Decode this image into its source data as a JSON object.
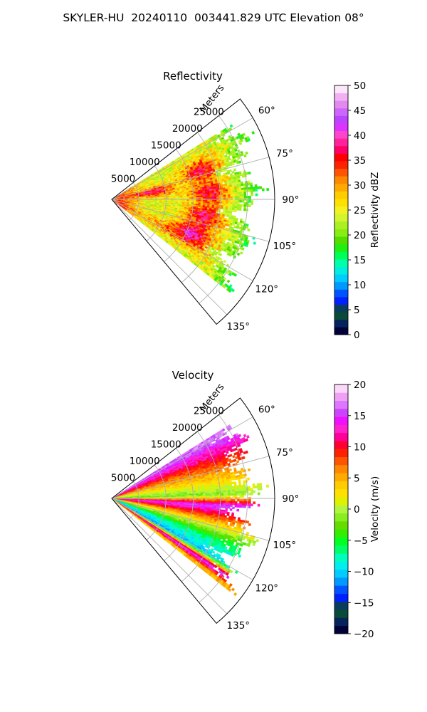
{
  "figure": {
    "title": "SKYLER-HU  20240110  003441.829 UTC Elevation 08°"
  },
  "chart_data": [
    {
      "type": "heatmap",
      "subtype": "polar-sector (radar PPI)",
      "title": "Reflectivity",
      "radial_label": "Meters",
      "radial_ticks": [
        "5000",
        "10000",
        "15000",
        "20000",
        "25000"
      ],
      "radial_tick_values": [
        5000,
        10000,
        15000,
        20000,
        25000
      ],
      "radial_range": [
        0,
        30000
      ],
      "angle_ticks": [
        "60°",
        "75°",
        "90°",
        "105°",
        "120°",
        "135°"
      ],
      "angle_tick_values": [
        60,
        75,
        90,
        105,
        120,
        135
      ],
      "angle_range_deg": [
        52,
        140
      ],
      "data_extent_deg": [
        58,
        128
      ],
      "grid": true,
      "colorbar": {
        "label": "Reflectivity dBZ",
        "ticks": [
          "0",
          "5",
          "10",
          "15",
          "20",
          "25",
          "30",
          "35",
          "40",
          "45",
          "50"
        ],
        "range": [
          0,
          50
        ]
      },
      "observed_features": {
        "dominant_range_dBZ": [
          20,
          35
        ],
        "maxima_dBZ": [
          35,
          40
        ],
        "cores": [
          {
            "azimuth_deg": 72,
            "range_m": 17000
          },
          {
            "azimuth_deg": 86,
            "range_m": 18000
          },
          {
            "azimuth_deg": 100,
            "range_m": 17500
          },
          {
            "azimuth_deg": 80,
            "range_m": 8000
          },
          {
            "azimuth_deg": 112,
            "range_m": 16000
          }
        ]
      }
    },
    {
      "type": "heatmap",
      "subtype": "polar-sector (radar PPI)",
      "title": "Velocity",
      "radial_label": "Meters",
      "radial_ticks": [
        "5000",
        "10000",
        "15000",
        "20000",
        "25000"
      ],
      "radial_tick_values": [
        5000,
        10000,
        15000,
        20000,
        25000
      ],
      "radial_range": [
        0,
        30000
      ],
      "angle_ticks": [
        "60°",
        "75°",
        "90°",
        "105°",
        "120°",
        "135°"
      ],
      "angle_tick_values": [
        60,
        75,
        90,
        105,
        120,
        135
      ],
      "angle_range_deg": [
        52,
        140
      ],
      "data_extent_deg": [
        58,
        128
      ],
      "grid": true,
      "colorbar": {
        "label": "Velocity (m/s)",
        "ticks": [
          "−20",
          "−15",
          "−10",
          "−5",
          "0",
          "5",
          "10",
          "15",
          "20"
        ],
        "range": [
          -20,
          20
        ]
      },
      "observed_features": {
        "velocity_by_azimuth": [
          {
            "azimuth_deg": 60,
            "velocity_ms": 15
          },
          {
            "azimuth_deg": 70,
            "velocity_ms": 8
          },
          {
            "azimuth_deg": 80,
            "velocity_ms": 2
          },
          {
            "azimuth_deg": 88,
            "velocity_ms": -3
          },
          {
            "azimuth_deg": 94,
            "velocity_ms": 14
          },
          {
            "azimuth_deg": 99,
            "velocity_ms": 8
          },
          {
            "azimuth_deg": 105,
            "velocity_ms": 0
          },
          {
            "azimuth_deg": 112,
            "velocity_ms": -8
          },
          {
            "azimuth_deg": 120,
            "velocity_ms": -12
          },
          {
            "azimuth_deg": 124,
            "velocity_ms": 14
          },
          {
            "azimuth_deg": 127,
            "velocity_ms": 3
          }
        ],
        "folding_boundaries_deg": [
          92,
          122
        ]
      }
    }
  ],
  "colormaps": {
    "reflectivity": [
      "#00003a",
      "#05245b",
      "#094a39",
      "#0a3c5e",
      "#0021ff",
      "#0054ff",
      "#0099ff",
      "#00ccff",
      "#00eedd",
      "#00ffaa",
      "#00ff55",
      "#22ee11",
      "#55dd00",
      "#88ee11",
      "#aaf022",
      "#d2f530",
      "#f2f220",
      "#ffe000",
      "#ffcc00",
      "#ffaa00",
      "#ff8800",
      "#ff5500",
      "#ff2200",
      "#ff0000",
      "#ff0066",
      "#ff2299",
      "#ff44cc",
      "#dd33ff",
      "#bb44ff",
      "#cc66ff",
      "#e38aee",
      "#f1b0f3",
      "#fce6fb"
    ],
    "velocity": [
      "#00003a",
      "#05245b",
      "#094a39",
      "#0a3c5e",
      "#0021ff",
      "#0054ff",
      "#0099ff",
      "#00ccff",
      "#00eeee",
      "#00ffbb",
      "#00ff66",
      "#00ff22",
      "#33ee00",
      "#66dd00",
      "#88ee22",
      "#b2f540",
      "#e0f000",
      "#ffe000",
      "#ffcc00",
      "#ffaa00",
      "#ff8800",
      "#ff5500",
      "#ff2200",
      "#ff0033",
      "#ff0099",
      "#ff22cc",
      "#ee11ff",
      "#cc44ff",
      "#dd77ff",
      "#eea0f5",
      "#fbd8fb"
    ],
    "grid": "#b0b0b0"
  }
}
